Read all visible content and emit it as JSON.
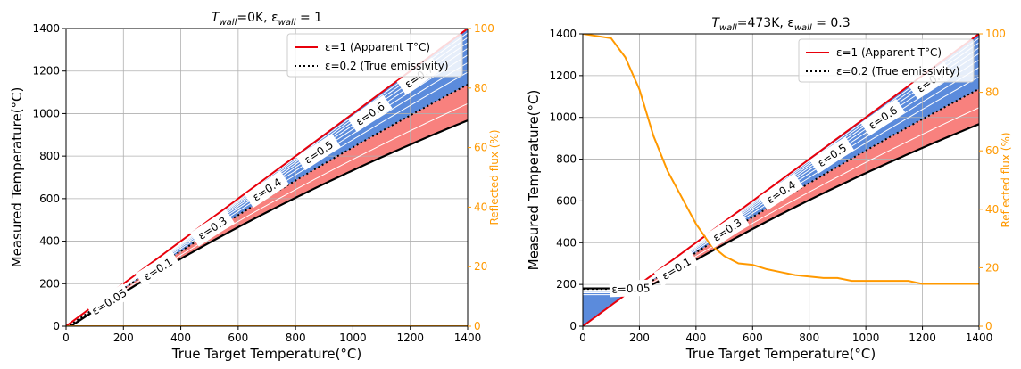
{
  "chart_data": [
    {
      "type": "line",
      "title_prefix": "T",
      "title_sub1": "wall",
      "title_mid": "=0K, ε",
      "title_sub2": "wall",
      "title_suffix": " = 1",
      "xlabel": "True Target Temperature(°C)",
      "ylabel": "Measured Temperature(°C)",
      "y2label": "Reflected flux (%)",
      "xlim": [
        0,
        1400
      ],
      "ylim": [
        0,
        1400
      ],
      "y2lim": [
        0,
        100
      ],
      "xticks": [
        "0",
        "200",
        "400",
        "600",
        "800",
        "1000",
        "1200",
        "1400"
      ],
      "yticks": [
        "0",
        "200",
        "400",
        "600",
        "800",
        "1000",
        "1200",
        "1400"
      ],
      "y2ticks": [
        "0",
        "20",
        "40",
        "60",
        "80",
        "100"
      ],
      "grid": true,
      "legend_position": "top-right",
      "legend": [
        {
          "label": "ε=1 (Apparent T°C)",
          "style": "solid",
          "color": "#e8000b"
        },
        {
          "label": "ε=0.2 (True emissivity)",
          "style": "dotted",
          "color": "#000000"
        }
      ],
      "t_wall_k": 0,
      "eps_wall": 1,
      "band_colors": {
        "below_true": "#5b8bdc",
        "above_true": "#f8817e"
      },
      "emissivity_lines": [
        0.05,
        0.1,
        0.2,
        0.3,
        0.4,
        0.5,
        0.6,
        0.7,
        0.8,
        0.9,
        1.0
      ],
      "curve_labels": [
        {
          "text": "ε=0.05",
          "eps": 0.05,
          "at_x": 150
        },
        {
          "text": "ε=0.1",
          "eps": 0.1,
          "at_x": 320
        },
        {
          "text": "ε=0.3",
          "eps": 0.3,
          "at_x": 510
        },
        {
          "text": "ε=0.4",
          "eps": 0.4,
          "at_x": 700
        },
        {
          "text": "ε=0.5",
          "eps": 0.5,
          "at_x": 880
        },
        {
          "text": "ε=0.6",
          "eps": 0.6,
          "at_x": 1060
        },
        {
          "text": "ε=0.7",
          "eps": 0.7,
          "at_x": 1230
        }
      ],
      "reflected_flux": {
        "color": "#ff9900",
        "x": [
          0,
          1400
        ],
        "values": [
          0,
          0
        ]
      }
    },
    {
      "type": "line",
      "title_prefix": "T",
      "title_sub1": "wall",
      "title_mid": "=473K, ε",
      "title_sub2": "wall",
      "title_suffix": " = 0.3",
      "xlabel": "True Target Temperature(°C)",
      "ylabel": "Measured Temperature(°C)",
      "y2label": "Reflected flux (%)",
      "xlim": [
        0,
        1400
      ],
      "ylim": [
        0,
        1400
      ],
      "y2lim": [
        0,
        100
      ],
      "xticks": [
        "0",
        "200",
        "400",
        "600",
        "800",
        "1000",
        "1200",
        "1400"
      ],
      "yticks": [
        "0",
        "200",
        "400",
        "600",
        "800",
        "1000",
        "1200",
        "1400"
      ],
      "y2ticks": [
        "0",
        "20",
        "40",
        "60",
        "80",
        "100"
      ],
      "grid": true,
      "legend_position": "top-right",
      "legend": [
        {
          "label": "ε=1 (Apparent T°C)",
          "style": "solid",
          "color": "#e8000b"
        },
        {
          "label": "ε=0.2 (True emissivity)",
          "style": "dotted",
          "color": "#000000"
        }
      ],
      "t_wall_k": 473,
      "eps_wall": 0.3,
      "band_colors": {
        "below_true": "#5b8bdc",
        "above_true": "#f8817e"
      },
      "emissivity_lines": [
        0.05,
        0.1,
        0.2,
        0.3,
        0.4,
        0.5,
        0.6,
        0.7,
        0.8,
        0.9,
        1.0
      ],
      "curve_labels": [
        {
          "text": "ε=0.05",
          "eps": 0.05,
          "at_x": 170
        },
        {
          "text": "ε=0.1",
          "eps": 0.1,
          "at_x": 330
        },
        {
          "text": "ε=0.3",
          "eps": 0.3,
          "at_x": 510
        },
        {
          "text": "ε=0.4",
          "eps": 0.4,
          "at_x": 700
        },
        {
          "text": "ε=0.5",
          "eps": 0.5,
          "at_x": 880
        },
        {
          "text": "ε=0.6",
          "eps": 0.6,
          "at_x": 1060
        },
        {
          "text": "ε=0.7",
          "eps": 0.7,
          "at_x": 1230
        }
      ],
      "reflected_flux": {
        "color": "#ff9900",
        "x": [
          0,
          100,
          150,
          200,
          250,
          300,
          350,
          400,
          450,
          500,
          550,
          600,
          650,
          700,
          750,
          800,
          850,
          900,
          950,
          1000,
          1050,
          1100,
          1150,
          1200,
          1250,
          1300,
          1350,
          1400
        ],
        "values": [
          100,
          98.5,
          92,
          81,
          65,
          53,
          44,
          35,
          28,
          24,
          21.5,
          21,
          19.5,
          18.5,
          17.5,
          17,
          16.5,
          16.5,
          15.5,
          15.5,
          15.5,
          15.5,
          15.5,
          14.5,
          14.5,
          14.5,
          14.5,
          14.5
        ]
      }
    }
  ]
}
